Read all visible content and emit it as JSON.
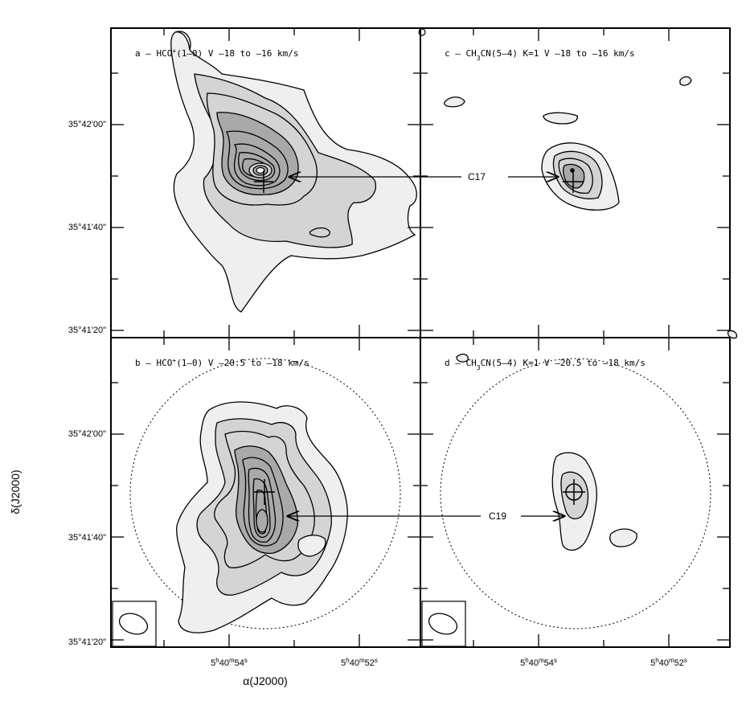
{
  "chart_data": {
    "type": "contour",
    "xlabel": "α(J2000)",
    "ylabel": "δ(J2000)",
    "x_ticks": [
      {
        "h": "5",
        "m": "40",
        "s": "54",
        "label": "5h40m54s"
      },
      {
        "h": "5",
        "m": "40",
        "s": "52",
        "label": "5h40m52s"
      }
    ],
    "y_ticks": [
      "35°42'00\"",
      "35°41'40\"",
      "35°41'20\""
    ],
    "panels": [
      {
        "id": "a",
        "title_parts": {
          "prefix": "a – HCO",
          "sup": "+",
          "rest": "(1–0) V –18 to –16 km/s"
        },
        "molecule": "HCO+(1-0)",
        "velocity_range_kms": [
          -18,
          -16
        ],
        "show_primary_beam": false,
        "peak_offset_arcsec": [
          0,
          4
        ],
        "marker_offset_arcsec": [
          0,
          0
        ]
      },
      {
        "id": "c",
        "title_parts": {
          "prefix": "c – CH",
          "sub": "3",
          "rest": "CN(5–4) K=1 V –18 to –16 km/s"
        },
        "molecule": "CH3CN(5-4) K=1",
        "velocity_range_kms": [
          -18,
          -16
        ],
        "show_primary_beam": false,
        "source": "C17"
      },
      {
        "id": "b",
        "title_parts": {
          "prefix": "b – HCO",
          "sup": "+",
          "rest": "(1–0) V –20.5 to –18 km/s"
        },
        "molecule": "HCO+(1-0)",
        "velocity_range_kms": [
          -20.5,
          -18
        ],
        "show_primary_beam": true
      },
      {
        "id": "d",
        "title_parts": {
          "prefix": "d – CH",
          "sub": "3",
          "rest": "CN(5–4) K=1 V –20.5 to –18 km/s"
        },
        "molecule": "CH3CN(5-4) K=1",
        "velocity_range_kms": [
          -20.5,
          -18
        ],
        "show_primary_beam": true,
        "source": "C19"
      }
    ],
    "annotations": [
      {
        "label": "C17",
        "links": [
          "a",
          "c"
        ]
      },
      {
        "label": "C19",
        "links": [
          "b",
          "d"
        ]
      }
    ],
    "colors": {
      "ink": "#000000",
      "fill_light": "#efefef",
      "fill_mid": "#d4d4d4",
      "fill_dark": "#a9a9a9",
      "background": "#ffffff"
    }
  }
}
